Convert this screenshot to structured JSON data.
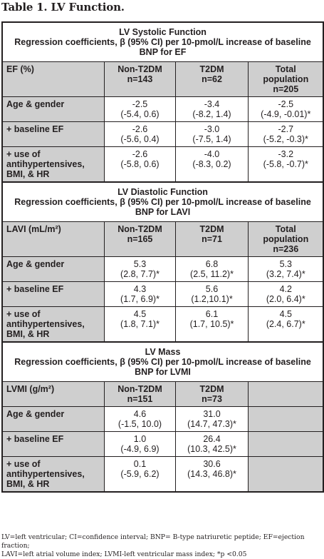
{
  "title": "Table 1. LV Function.",
  "sections": [
    {
      "heading": "LV Systolic Function",
      "subheading": "Regression coefficients, β (95% CI) per 10-pmol/L increase of baseline BNP for EF",
      "header": {
        "label": "EF (%)",
        "cols": [
          [
            "Non-T2DM",
            "n=143"
          ],
          [
            "T2DM",
            "n=62"
          ],
          [
            "Total",
            "population",
            "n=205"
          ]
        ]
      },
      "rows": [
        {
          "label": "Age & gender",
          "cells": [
            [
              "-2.5",
              "(-5.4, 0.6)"
            ],
            [
              "-3.4",
              "(-8.2, 1.4)"
            ],
            [
              "-2.5",
              "(-4.9, -0.01)*"
            ]
          ]
        },
        {
          "label": "+ baseline EF",
          "cells": [
            [
              "-2.6",
              "(-5.6, 0.4)"
            ],
            [
              "-3.0",
              "(-7.5, 1.4)"
            ],
            [
              "-2.7",
              "(-5.2, -0.3)*"
            ]
          ]
        },
        {
          "label": "+ use of antihypertensives, BMI, & HR",
          "cells": [
            [
              "-2.6",
              "(-5.8, 0.6)"
            ],
            [
              "-4.0",
              "(-8.3, 0.2)"
            ],
            [
              "-3.2",
              "(-5.8, -0.7)*"
            ]
          ]
        }
      ]
    },
    {
      "heading": "LV Diastolic Function",
      "subheading": "Regression coefficients, β (95% CI) per 10-pmol/L increase of baseline BNP for LAVI",
      "header": {
        "label": "LAVI (mL/m²)",
        "cols": [
          [
            "Non-T2DM",
            "n=165"
          ],
          [
            "T2DM",
            "n=71"
          ],
          [
            "Total",
            "population",
            "n=236"
          ]
        ]
      },
      "rows": [
        {
          "label": "Age & gender",
          "cells": [
            [
              "5.3",
              "(2.8, 7.7)*"
            ],
            [
              "6.8",
              "(2.5, 11.2)*"
            ],
            [
              "5.3",
              "(3.2, 7.4)*"
            ]
          ]
        },
        {
          "label": "+ baseline EF",
          "cells": [
            [
              "4.3",
              "(1.7, 6.9)*"
            ],
            [
              "5.6",
              "(1.2,10.1)*"
            ],
            [
              "4.2",
              "(2.0, 6.4)*"
            ]
          ]
        },
        {
          "label": "+ use of antihypertensives, BMI, & HR",
          "cells": [
            [
              "4.5",
              "(1.8, 7.1)*"
            ],
            [
              "6.1",
              "(1.7, 10.5)*"
            ],
            [
              "4.5",
              "(2.4, 6.7)*"
            ]
          ]
        }
      ]
    },
    {
      "heading": "LV Mass",
      "subheading": "Regression coefficients, β (95% CI) per 10-pmol/L increase of baseline BNP for LVMI",
      "header": {
        "label": "LVMI (g/m²)",
        "cols": [
          [
            "Non-T2DM",
            "n=151"
          ],
          [
            "T2DM",
            "n=73"
          ],
          []
        ]
      },
      "rows": [
        {
          "label": "Age & gender",
          "cells": [
            [
              "4.6",
              "(-1.5, 10.0)"
            ],
            [
              "31.0",
              "(14.7, 47.3)*"
            ],
            []
          ]
        },
        {
          "label": "+ baseline EF",
          "cells": [
            [
              "1.0",
              "(-4.9, 6.9)"
            ],
            [
              "26.4",
              "(10.3, 42.5)*"
            ],
            []
          ]
        },
        {
          "label": "+ use of antihypertensives, BMI, & HR",
          "cells": [
            [
              "0.1",
              "(-5.9, 6.2)"
            ],
            [
              "30.6",
              "(14.3, 46.8)*"
            ],
            []
          ]
        }
      ]
    }
  ],
  "footnote": [
    "LV=left ventricular; CI=confidence interval; BNP= B-type natriuretic peptide; EF=ejection fraction;",
    "LAVI=left atrial volume index; LVMI-left ventricular mass index; *p <0.05"
  ]
}
